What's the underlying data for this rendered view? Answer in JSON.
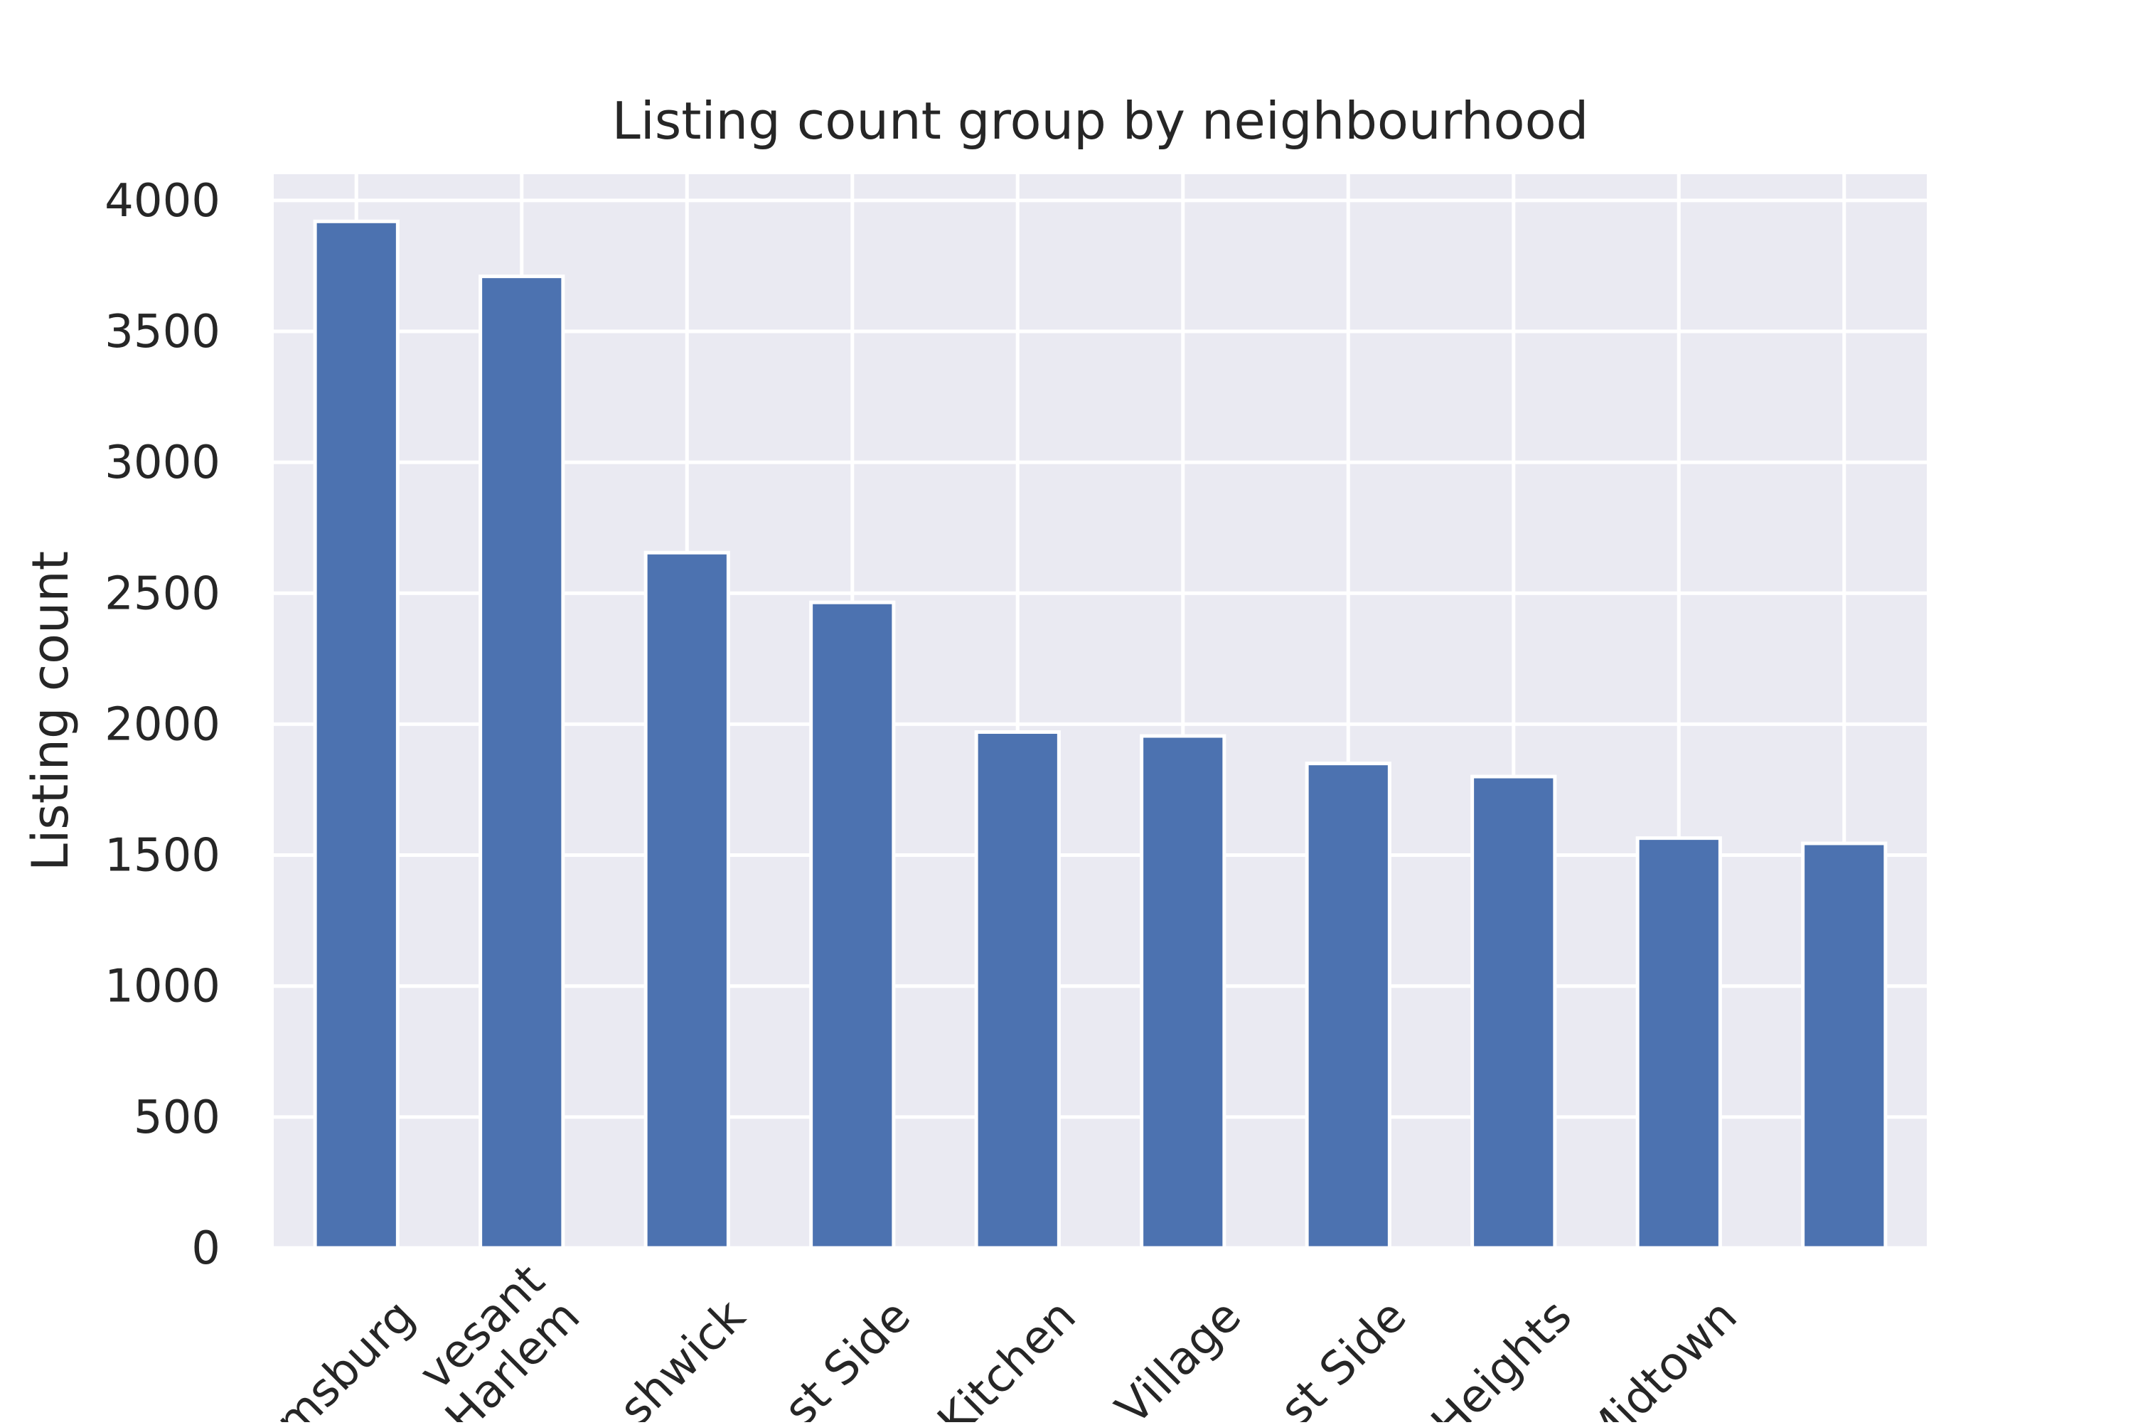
{
  "chart_data": {
    "type": "bar",
    "title": "Listing count group by neighbourhood",
    "xlabel": "",
    "ylabel": "Listing count",
    "ylim": [
      0,
      4100
    ],
    "yticks": [
      0,
      500,
      1000,
      1500,
      2000,
      2500,
      3000,
      3500,
      4000
    ],
    "grid": true,
    "legend": "none",
    "categories": [
      "msburg",
      "vesant\nHarlem",
      "shwick",
      "st Side",
      "Kitchen",
      "Village",
      "st Side",
      "Heights",
      "Midtown",
      ""
    ],
    "values": [
      3920,
      3710,
      2655,
      2465,
      1970,
      1955,
      1850,
      1800,
      1565,
      1545
    ],
    "colors": {
      "bar": "#4c72b0",
      "plot_background": "#eaeaf2",
      "grid": "#ffffff",
      "text": "#262626"
    }
  }
}
